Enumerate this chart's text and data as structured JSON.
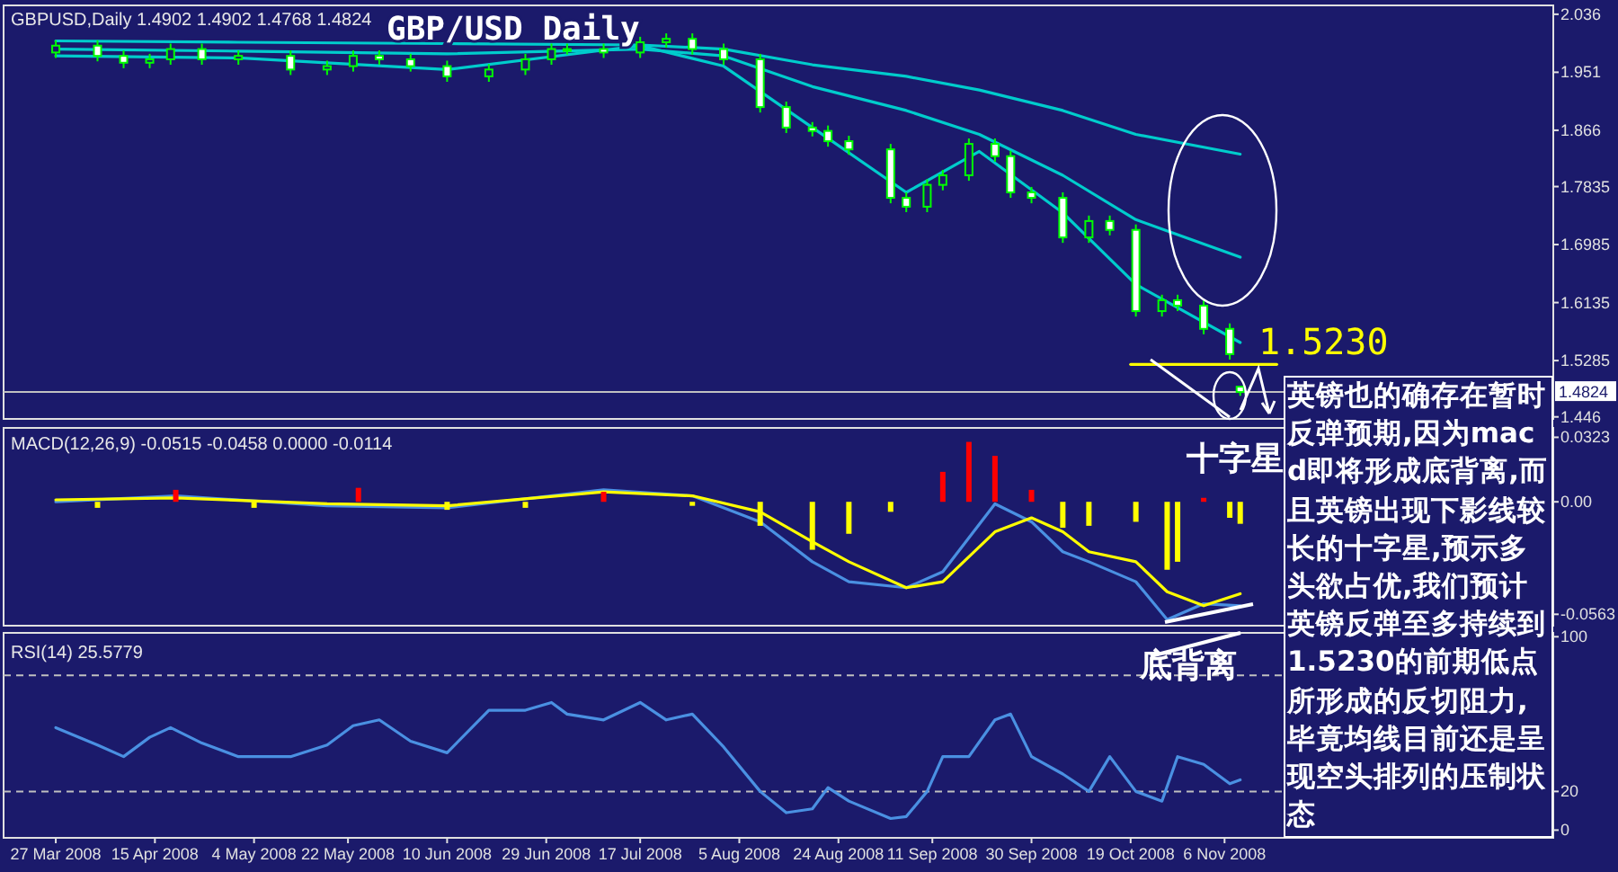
{
  "chart_data": [
    {
      "type": "candlestick",
      "title": "GBP/USD Daily",
      "x": [
        "2008-03-27",
        "2008-04-04",
        "2008-04-09",
        "2008-04-14",
        "2008-04-18",
        "2008-04-24",
        "2008-05-01",
        "2008-05-11",
        "2008-05-18",
        "2008-05-23",
        "2008-05-28",
        "2008-06-03",
        "2008-06-10",
        "2008-06-18",
        "2008-06-25",
        "2008-06-30",
        "2008-07-03",
        "2008-07-10",
        "2008-07-17",
        "2008-07-22",
        "2008-07-27",
        "2008-08-02",
        "2008-08-09",
        "2008-08-14",
        "2008-08-19",
        "2008-08-22",
        "2008-08-26",
        "2008-09-03",
        "2008-09-06",
        "2008-09-10",
        "2008-09-13",
        "2008-09-18",
        "2008-09-23",
        "2008-09-26",
        "2008-09-30",
        "2008-10-06",
        "2008-10-11",
        "2008-10-15",
        "2008-10-20",
        "2008-10-25",
        "2008-10-28",
        "2008-11-02",
        "2008-11-07",
        "2008-11-09"
      ],
      "ohlc": [
        [
          1.98,
          1.998,
          1.972,
          1.99
        ],
        [
          1.99,
          1.998,
          1.967,
          1.975
        ],
        [
          1.975,
          1.983,
          1.957,
          1.965
        ],
        [
          1.965,
          1.978,
          1.957,
          1.97
        ],
        [
          1.97,
          1.993,
          1.962,
          1.985
        ],
        [
          1.985,
          1.993,
          1.962,
          1.97
        ],
        [
          1.97,
          1.983,
          1.962,
          1.975
        ],
        [
          1.975,
          1.983,
          1.947,
          1.955
        ],
        [
          1.955,
          1.968,
          1.947,
          1.96
        ],
        [
          1.96,
          1.983,
          1.952,
          1.975
        ],
        [
          1.975,
          1.983,
          1.962,
          1.97
        ],
        [
          1.97,
          1.978,
          1.952,
          1.96
        ],
        [
          1.96,
          1.968,
          1.937,
          1.945
        ],
        [
          1.945,
          1.963,
          1.937,
          1.955
        ],
        [
          1.955,
          1.978,
          1.947,
          1.97
        ],
        [
          1.97,
          1.993,
          1.962,
          1.985
        ],
        [
          1.985,
          1.993,
          1.977,
          1.985
        ],
        [
          1.985,
          1.993,
          1.972,
          1.98
        ],
        [
          1.98,
          2.003,
          1.972,
          1.995
        ],
        [
          1.995,
          2.008,
          1.987,
          2.0
        ],
        [
          2.0,
          2.008,
          1.977,
          1.985
        ],
        [
          1.985,
          1.993,
          1.962,
          1.97
        ],
        [
          1.97,
          1.978,
          1.892,
          1.9
        ],
        [
          1.9,
          1.908,
          1.862,
          1.87
        ],
        [
          1.87,
          1.878,
          1.857,
          1.865
        ],
        [
          1.865,
          1.873,
          1.842,
          1.85
        ],
        [
          1.85,
          1.858,
          1.83,
          1.838
        ],
        [
          1.838,
          1.846,
          1.759,
          1.767
        ],
        [
          1.767,
          1.775,
          1.746,
          1.754
        ],
        [
          1.754,
          1.794,
          1.746,
          1.786
        ],
        [
          1.786,
          1.808,
          1.778,
          1.8
        ],
        [
          1.8,
          1.854,
          1.792,
          1.846
        ],
        [
          1.846,
          1.854,
          1.82,
          1.828
        ],
        [
          1.828,
          1.836,
          1.767,
          1.775
        ],
        [
          1.775,
          1.783,
          1.759,
          1.767
        ],
        [
          1.767,
          1.775,
          1.701,
          1.709
        ],
        [
          1.709,
          1.741,
          1.701,
          1.733
        ],
        [
          1.733,
          1.741,
          1.712,
          1.72
        ],
        [
          1.72,
          1.728,
          1.593,
          1.601
        ],
        [
          1.601,
          1.625,
          1.593,
          1.617
        ],
        [
          1.617,
          1.625,
          1.601,
          1.609
        ],
        [
          1.609,
          1.617,
          1.567,
          1.575
        ],
        [
          1.575,
          1.583,
          1.53,
          1.538
        ],
        [
          1.4902,
          1.4902,
          1.4768,
          1.4824
        ]
      ],
      "series": [
        {
          "type": "line",
          "color": "#00cccc",
          "x": [
            "2008-03-27",
            "2008-05-01",
            "2008-06-10",
            "2008-07-17",
            "2008-08-02",
            "2008-08-19",
            "2008-09-06",
            "2008-09-20",
            "2008-10-06",
            "2008-10-20",
            "2008-11-09"
          ],
          "values": [
            1.997,
            1.995,
            1.993,
            1.991,
            1.985,
            1.962,
            1.945,
            1.925,
            1.895,
            1.86,
            1.831
          ]
        },
        {
          "type": "line",
          "color": "#00cccc",
          "x": [
            "2008-03-27",
            "2008-05-01",
            "2008-06-10",
            "2008-07-17",
            "2008-08-02",
            "2008-08-19",
            "2008-09-06",
            "2008-09-20",
            "2008-10-06",
            "2008-10-20",
            "2008-11-09"
          ],
          "values": [
            1.985,
            1.982,
            1.978,
            1.985,
            1.975,
            1.93,
            1.895,
            1.86,
            1.8,
            1.735,
            1.68
          ]
        },
        {
          "type": "line",
          "color": "#00cccc",
          "x": [
            "2008-03-27",
            "2008-05-01",
            "2008-06-10",
            "2008-07-17",
            "2008-08-02",
            "2008-08-19",
            "2008-09-06",
            "2008-09-20",
            "2008-10-06",
            "2008-10-20",
            "2008-11-09"
          ],
          "values": [
            1.975,
            1.972,
            1.955,
            1.99,
            1.96,
            1.87,
            1.775,
            1.835,
            1.745,
            1.64,
            1.555
          ]
        },
        {
          "type": "line",
          "color": "#ffff00",
          "x": [
            "2008-10-19",
            "2008-11-16"
          ],
          "values": [
            1.523,
            1.523
          ]
        }
      ],
      "xlim": [
        "2008-03-17",
        "2009-01-08"
      ],
      "ylim": [
        1.443,
        2.049
      ],
      "yticks": [
        2.036,
        1.951,
        1.866,
        1.7835,
        1.6985,
        1.6135,
        1.5285,
        1.446
      ],
      "ref_lines": [
        {
          "axis": "y",
          "value": 1.4824,
          "label": "1.4824",
          "color": "#c0c0c0"
        }
      ],
      "annotations": [
        "GBPUSD,Daily  1.4902 1.4902 1.4768 1.4824",
        "1.5230",
        "英镑也的确存在暂时反弹预期,因为macd即将形成底背离,而且英镑出现下影线较长的十字星,预示多头欲占优,我们预计英镑反弹至多持续到1.5230的前期低点所形成的反切阻力,毕竟均线目前还是呈现空头排列的压制状态"
      ],
      "tick_labels": "y"
    },
    {
      "type": "bar",
      "series": [
        {
          "type": "bar",
          "x": [
            "2008-04-04",
            "2008-04-19",
            "2008-05-04",
            "2008-05-24",
            "2008-06-10",
            "2008-06-25",
            "2008-07-10",
            "2008-07-27",
            "2008-08-09",
            "2008-08-19",
            "2008-08-26",
            "2008-09-03",
            "2008-09-13",
            "2008-09-18",
            "2008-09-23",
            "2008-09-30",
            "2008-10-06",
            "2008-10-11",
            "2008-10-20",
            "2008-10-26",
            "2008-10-28",
            "2008-11-02",
            "2008-11-07",
            "2008-11-09"
          ],
          "values": [
            -0.003,
            0.006,
            -0.003,
            0.007,
            -0.004,
            -0.003,
            0.005,
            -0.002,
            -0.012,
            -0.024,
            -0.016,
            -0.005,
            0.015,
            0.03,
            0.023,
            0.006,
            -0.013,
            -0.012,
            -0.01,
            -0.034,
            -0.03,
            0.002,
            -0.008,
            -0.011
          ],
          "colors": [
            "#ffff00",
            "#ff0000",
            "#ffff00",
            "#ff0000",
            "#ffff00",
            "#ffff00",
            "#ff0000",
            "#ffff00",
            "#ffff00",
            "#ffff00",
            "#ffff00",
            "#ffff00",
            "#ff0000",
            "#ff0000",
            "#ff0000",
            "#ff0000",
            "#ffff00",
            "#ffff00",
            "#ffff00",
            "#ffff00",
            "#ffff00",
            "#ff0000",
            "#ffff00",
            "#ffff00"
          ]
        },
        {
          "type": "line",
          "color": "#4a90e2",
          "x": [
            "2008-03-27",
            "2008-04-19",
            "2008-05-18",
            "2008-06-10",
            "2008-07-10",
            "2008-07-27",
            "2008-08-09",
            "2008-08-19",
            "2008-08-26",
            "2008-09-06",
            "2008-09-13",
            "2008-09-23",
            "2008-09-30",
            "2008-10-06",
            "2008-10-11",
            "2008-10-20",
            "2008-10-26",
            "2008-11-02",
            "2008-11-09"
          ],
          "values": [
            0.0,
            0.003,
            -0.002,
            -0.003,
            0.006,
            0.003,
            -0.01,
            -0.03,
            -0.04,
            -0.043,
            -0.035,
            -0.001,
            -0.01,
            -0.025,
            -0.03,
            -0.04,
            -0.059,
            -0.051,
            -0.052
          ]
        },
        {
          "type": "line",
          "color": "#ffff00",
          "x": [
            "2008-03-27",
            "2008-04-19",
            "2008-05-18",
            "2008-06-10",
            "2008-07-10",
            "2008-07-27",
            "2008-08-09",
            "2008-08-19",
            "2008-08-26",
            "2008-09-06",
            "2008-09-13",
            "2008-09-23",
            "2008-09-30",
            "2008-10-06",
            "2008-10-11",
            "2008-10-20",
            "2008-10-26",
            "2008-11-02",
            "2008-11-09"
          ],
          "values": [
            0.001,
            0.002,
            -0.001,
            -0.002,
            0.005,
            0.003,
            -0.005,
            -0.02,
            -0.03,
            -0.043,
            -0.04,
            -0.015,
            -0.008,
            -0.015,
            -0.025,
            -0.03,
            -0.045,
            -0.052,
            -0.046
          ]
        }
      ],
      "xlim": [
        "2008-03-17",
        "2009-01-08"
      ],
      "ylim": [
        -0.062,
        0.037
      ],
      "yticks": [
        0.0323,
        {
          "value": 0,
          "label": "0.00"
        },
        -0.0563
      ],
      "annotations": [
        "MACD(12,26,9) -0.0515 -0.0458 0.0000 -0.0114",
        "十字星"
      ],
      "tick_labels": "y"
    },
    {
      "type": "line",
      "x": [
        "2008-03-27",
        "2008-04-04",
        "2008-04-09",
        "2008-04-14",
        "2008-04-18",
        "2008-04-24",
        "2008-05-01",
        "2008-05-11",
        "2008-05-18",
        "2008-05-23",
        "2008-05-28",
        "2008-06-03",
        "2008-06-10",
        "2008-06-18",
        "2008-06-25",
        "2008-06-30",
        "2008-07-03",
        "2008-07-10",
        "2008-07-17",
        "2008-07-22",
        "2008-07-27",
        "2008-08-02",
        "2008-08-09",
        "2008-08-14",
        "2008-08-19",
        "2008-08-22",
        "2008-08-26",
        "2008-09-03",
        "2008-09-06",
        "2008-09-10",
        "2008-09-13",
        "2008-09-18",
        "2008-09-23",
        "2008-09-26",
        "2008-09-30",
        "2008-10-06",
        "2008-10-11",
        "2008-10-15",
        "2008-10-20",
        "2008-10-25",
        "2008-10-28",
        "2008-11-02",
        "2008-11-07",
        "2008-11-09"
      ],
      "series": [
        {
          "color": "#4a90e2",
          "values": [
            53,
            44,
            38,
            48,
            53,
            45,
            38,
            38,
            44,
            54,
            57,
            46,
            40,
            62,
            62,
            66,
            60,
            57,
            66,
            57,
            60,
            43,
            20,
            9,
            11,
            22,
            15,
            6,
            7,
            20,
            38,
            38,
            57,
            60,
            38,
            29,
            20,
            38,
            20,
            15,
            38,
            34,
            24,
            26
          ]
        }
      ],
      "xlim": [
        "2008-03-17",
        "2009-01-08"
      ],
      "ylim": [
        -4,
        102
      ],
      "yticks": [
        100,
        20,
        0
      ],
      "xticks": [
        {
          "value": "2008-03-27",
          "label": "27 Mar 2008"
        },
        {
          "value": "2008-04-15",
          "label": "15 Apr 2008"
        },
        {
          "value": "2008-05-04",
          "label": "4 May 2008"
        },
        {
          "value": "2008-05-22",
          "label": "22 May 2008"
        },
        {
          "value": "2008-06-10",
          "label": "10 Jun 2008"
        },
        {
          "value": "2008-06-29",
          "label": "29 Jun 2008"
        },
        {
          "value": "2008-07-17",
          "label": "17 Jul 2008"
        },
        {
          "value": "2008-08-05",
          "label": "5 Aug 2008"
        },
        {
          "value": "2008-08-24",
          "label": "24 Aug 2008"
        },
        {
          "value": "2008-09-11",
          "label": "11 Sep 2008"
        },
        {
          "value": "2008-09-30",
          "label": "30 Sep 2008"
        },
        {
          "value": "2008-10-19",
          "label": "19 Oct 2008"
        },
        {
          "value": "2008-11-06",
          "label": "6 Nov 2008"
        }
      ],
      "ref_lines": [
        {
          "axis": "y",
          "value": 80,
          "label": null,
          "color": "#c0c0c0",
          "line_style": "dashed"
        },
        {
          "axis": "y",
          "value": 20,
          "label": null,
          "color": "#c0c0c0",
          "line_style": "dashed"
        }
      ],
      "annotations": [
        "RSI(14) 25.5779",
        "底背离"
      ]
    }
  ]
}
